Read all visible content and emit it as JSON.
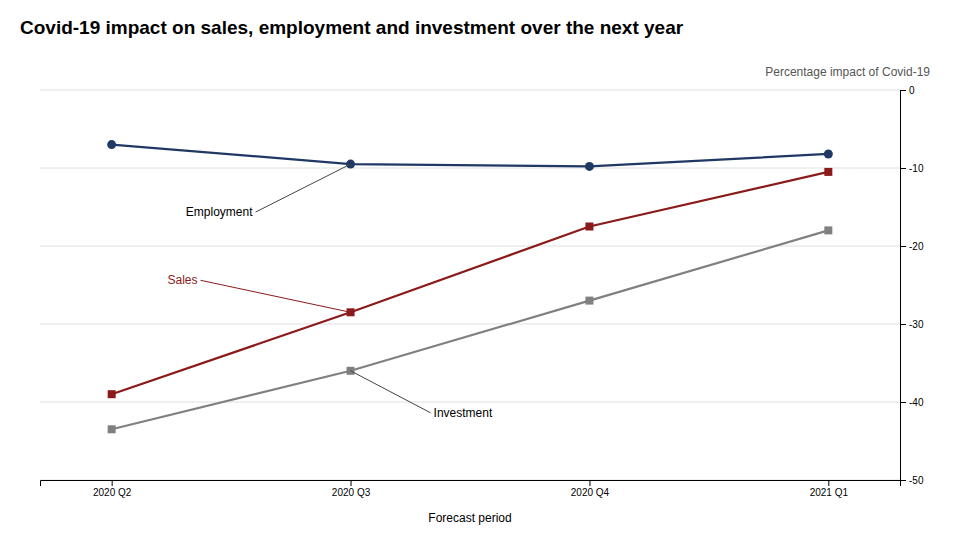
{
  "chart_data": {
    "type": "line",
    "title": "Covid-19 impact on sales, employment and investment over the next year",
    "x_label": "Forecast period",
    "y_label": "Percentage impact of Covid-19",
    "categories": [
      "2020 Q2",
      "2020 Q3",
      "2020 Q4",
      "2021 Q1"
    ],
    "series": [
      {
        "name": "Employment",
        "color": "#1f3864",
        "marker": "circle",
        "values": [
          -7.0,
          -9.5,
          -9.8,
          -8.2
        ]
      },
      {
        "name": "Sales",
        "color": "#8b1a1a",
        "marker": "square",
        "values": [
          -39.0,
          -28.5,
          -17.5,
          -10.5
        ]
      },
      {
        "name": "Investment",
        "color": "#808080",
        "marker": "square",
        "values": [
          -43.5,
          -36.0,
          -27.0,
          -18.0
        ]
      }
    ],
    "ylim": [
      -50,
      0
    ],
    "yticks": [
      0,
      -10,
      -20,
      -30,
      -40,
      -50
    ],
    "grid": true
  }
}
